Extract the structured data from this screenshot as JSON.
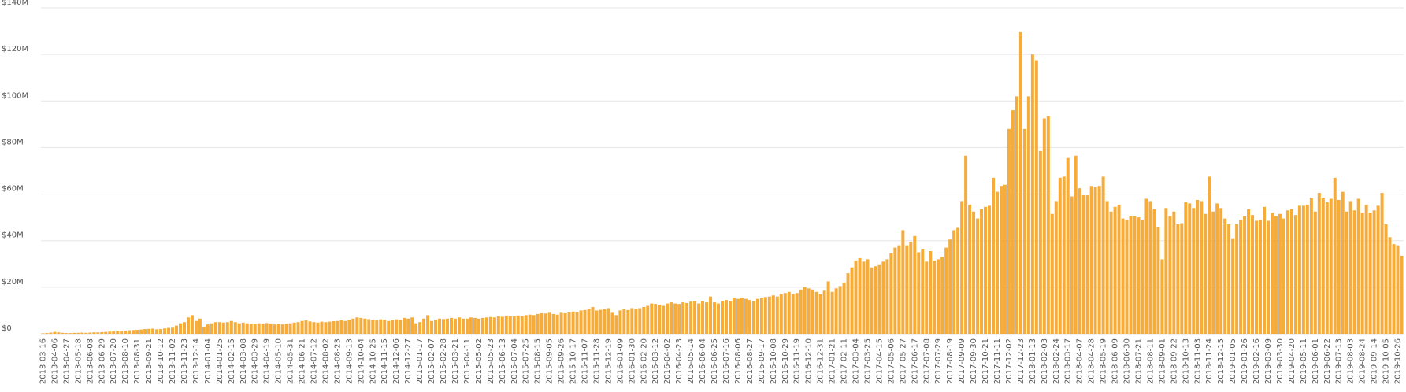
{
  "chart_data": {
    "type": "bar",
    "color": "#f5ac3a",
    "grid": true,
    "ylim": [
      0,
      140
    ],
    "yticks": [
      {
        "value": 0,
        "label": "$0"
      },
      {
        "value": 20,
        "label": "$20M"
      },
      {
        "value": 40,
        "label": "$40M"
      },
      {
        "value": 60,
        "label": "$60M"
      },
      {
        "value": 80,
        "label": "$80M"
      },
      {
        "value": 100,
        "label": "$100M"
      },
      {
        "value": 120,
        "label": "$120M"
      },
      {
        "value": 140,
        "label": "$140M"
      }
    ],
    "categories": [
      "2013-03-16",
      null,
      null,
      "2013-04-06",
      null,
      null,
      "2013-04-27",
      null,
      null,
      "2013-05-18",
      null,
      null,
      "2013-06-08",
      null,
      null,
      "2013-06-29",
      null,
      null,
      "2013-07-20",
      null,
      null,
      "2013-08-10",
      null,
      null,
      "2013-08-31",
      null,
      null,
      "2013-09-21",
      null,
      null,
      "2013-10-12",
      null,
      null,
      "2013-11-02",
      null,
      null,
      "2013-11-23",
      null,
      null,
      "2013-12-14",
      null,
      null,
      "2014-01-04",
      null,
      null,
      "2014-01-25",
      null,
      null,
      "2014-02-15",
      null,
      null,
      "2014-03-08",
      null,
      null,
      "2014-03-29",
      null,
      null,
      "2014-04-19",
      null,
      null,
      "2014-05-10",
      null,
      null,
      "2014-05-31",
      null,
      null,
      "2014-06-21",
      null,
      null,
      "2014-07-12",
      null,
      null,
      "2014-08-02",
      null,
      null,
      "2014-08-23",
      null,
      null,
      "2014-09-13",
      null,
      null,
      "2014-10-04",
      null,
      null,
      "2014-10-25",
      null,
      null,
      "2014-11-15",
      null,
      null,
      "2014-12-06",
      null,
      null,
      "2014-12-27",
      null,
      null,
      "2015-01-17",
      null,
      null,
      "2015-02-07",
      null,
      null,
      "2015-02-28",
      null,
      null,
      "2015-03-21",
      null,
      null,
      "2015-04-11",
      null,
      null,
      "2015-05-02",
      null,
      null,
      "2015-05-23",
      null,
      null,
      "2015-06-13",
      null,
      null,
      "2015-07-04",
      null,
      null,
      "2015-07-25",
      null,
      null,
      "2015-08-15",
      null,
      null,
      "2015-09-05",
      null,
      null,
      "2015-09-26",
      null,
      null,
      "2015-10-17",
      null,
      null,
      "2015-11-07",
      null,
      null,
      "2015-11-28",
      null,
      null,
      "2015-12-19",
      null,
      null,
      "2016-01-09",
      null,
      null,
      "2016-01-30",
      null,
      null,
      "2016-02-20",
      null,
      null,
      "2016-03-12",
      null,
      null,
      "2016-04-02",
      null,
      null,
      "2016-04-23",
      null,
      null,
      "2016-05-14",
      null,
      null,
      "2016-06-04",
      null,
      null,
      "2016-06-25",
      null,
      null,
      "2016-07-16",
      null,
      null,
      "2016-08-06",
      null,
      null,
      "2016-08-27",
      null,
      null,
      "2016-09-17",
      null,
      null,
      "2016-10-08",
      null,
      null,
      "2016-10-29",
      null,
      null,
      "2016-11-19",
      null,
      null,
      "2016-12-10",
      null,
      null,
      "2016-12-31",
      null,
      null,
      "2017-01-21",
      null,
      null,
      "2017-02-11",
      null,
      null,
      "2017-03-04",
      null,
      null,
      "2017-03-25",
      null,
      null,
      "2017-04-15",
      null,
      null,
      "2017-05-06",
      null,
      null,
      "2017-05-27",
      null,
      null,
      "2017-06-17",
      null,
      null,
      "2017-07-08",
      null,
      null,
      "2017-07-29",
      null,
      null,
      "2017-08-19",
      null,
      null,
      "2017-09-09",
      null,
      null,
      "2017-09-30",
      null,
      null,
      "2017-10-21",
      null,
      null,
      "2017-11-11",
      null,
      null,
      "2017-12-02",
      null,
      null,
      "2017-12-23",
      null,
      null,
      "2018-01-13",
      null,
      null,
      "2018-02-03",
      null,
      null,
      "2018-02-24",
      null,
      null,
      "2018-03-17",
      null,
      null,
      "2018-04-07",
      null,
      null,
      "2018-04-28",
      null,
      null,
      "2018-05-19",
      null,
      null,
      "2018-06-09",
      null,
      null,
      "2018-06-30",
      null,
      null,
      "2018-07-21",
      null,
      null,
      "2018-08-11",
      null,
      null,
      "2018-09-01",
      null,
      null,
      "2018-09-22",
      null,
      null,
      "2018-10-13",
      null,
      null,
      "2018-11-03",
      null,
      null,
      "2018-11-24",
      null,
      null,
      "2018-12-15",
      null,
      null,
      "2019-01-05",
      null,
      null,
      "2019-01-26",
      null,
      null,
      "2019-02-16",
      null,
      null,
      "2019-03-09",
      null,
      null,
      "2019-03-30",
      null,
      null,
      "2019-04-20",
      null,
      null,
      "2019-05-11",
      null,
      null,
      "2019-06-01",
      null,
      null,
      "2019-06-22",
      null,
      null,
      "2019-07-13",
      null,
      null,
      "2019-08-03",
      null,
      null,
      "2019-08-24",
      null,
      null,
      "2019-09-14",
      null,
      null,
      "2019-10-05",
      null,
      null,
      "2019-10-26",
      null
    ],
    "values": [
      0.2,
      0.3,
      0.5,
      0.8,
      0.6,
      0.4,
      0.3,
      0.3,
      0.4,
      0.4,
      0.5,
      0.4,
      0.5,
      0.6,
      0.6,
      0.7,
      0.8,
      0.9,
      1.0,
      1.1,
      1.2,
      1.3,
      1.5,
      1.6,
      1.7,
      1.8,
      2.0,
      2.1,
      2.2,
      1.9,
      2.0,
      2.3,
      2.5,
      2.6,
      3.5,
      4.5,
      5.0,
      7.0,
      8.0,
      5.5,
      6.5,
      3.0,
      4.0,
      4.5,
      5.0,
      5.0,
      4.8,
      5.0,
      5.5,
      5.0,
      4.5,
      4.8,
      4.5,
      4.3,
      4.2,
      4.5,
      4.4,
      4.6,
      4.3,
      4.0,
      4.2,
      4.0,
      4.3,
      4.5,
      4.8,
      5.0,
      5.5,
      5.8,
      5.3,
      5.0,
      4.8,
      5.2,
      5.0,
      5.2,
      5.4,
      5.5,
      5.8,
      5.5,
      6.0,
      6.5,
      7.0,
      6.8,
      6.5,
      6.3,
      6.0,
      5.8,
      6.2,
      6.0,
      5.5,
      5.8,
      6.2,
      6.0,
      6.8,
      6.5,
      7.0,
      4.5,
      5.0,
      6.5,
      8.0,
      5.5,
      6.0,
      6.5,
      6.3,
      6.5,
      6.8,
      6.5,
      7.0,
      6.5,
      6.5,
      7.0,
      6.8,
      6.5,
      6.8,
      7.0,
      7.2,
      7.0,
      7.5,
      7.3,
      7.8,
      7.5,
      7.5,
      7.8,
      7.6,
      8.0,
      8.2,
      8.0,
      8.5,
      8.8,
      8.7,
      9.0,
      8.5,
      8.2,
      9.0,
      8.8,
      9.2,
      9.5,
      9.3,
      10.0,
      10.2,
      10.5,
      11.5,
      10.0,
      10.3,
      10.5,
      11.0,
      9.0,
      8.0,
      10.0,
      10.5,
      10.2,
      11.0,
      10.8,
      11.0,
      11.5,
      12.0,
      13.0,
      12.8,
      12.5,
      12.0,
      13.0,
      13.5,
      13.0,
      12.8,
      13.5,
      13.2,
      13.8,
      14.0,
      13.0,
      14.0,
      13.5,
      16.0,
      13.5,
      13.0,
      14.0,
      14.5,
      14.0,
      15.5,
      15.0,
      15.5,
      15.0,
      14.5,
      14.0,
      15.0,
      15.5,
      15.8,
      16.0,
      16.5,
      16.0,
      17.0,
      17.5,
      18.0,
      17.0,
      17.5,
      19.0,
      20.0,
      19.5,
      19.0,
      18.0,
      17.0,
      18.5,
      22.5,
      18.0,
      19.5,
      20.5,
      22.0,
      26.0,
      28.5,
      31.5,
      32.5,
      31.0,
      32.0,
      28.5,
      29.0,
      29.5,
      31.0,
      32.0,
      34.5,
      37.0,
      38.0,
      44.5,
      38.0,
      39.5,
      42.0,
      35.0,
      36.5,
      31.0,
      35.5,
      31.5,
      32.0,
      33.0,
      37.0,
      40.5,
      44.5,
      45.5,
      57.0,
      76.5,
      55.5,
      52.5,
      49.5,
      53.5,
      54.5,
      55.0,
      67.0,
      61.0,
      63.5,
      64.0,
      88.0,
      96.0,
      102.0,
      129.5,
      88.0,
      102.0,
      120.0,
      117.5,
      78.5,
      92.5,
      93.5,
      51.5,
      57.0,
      67.0,
      67.5,
      75.5,
      59.0,
      76.5,
      62.5,
      59.5,
      59.5,
      63.5,
      63.0,
      63.5,
      67.5,
      57.0,
      52.5,
      54.5,
      55.5,
      49.5,
      49.0,
      50.5,
      50.5,
      50.0,
      49.0,
      58.0,
      57.0,
      53.5,
      46.0,
      32.0,
      54.0,
      50.5,
      52.5,
      47.0,
      47.5,
      56.5,
      56.0,
      54.0,
      57.5,
      57.0,
      51.5,
      67.5,
      52.5,
      56.0,
      54.0,
      49.5,
      47.0,
      41.0,
      47.0,
      49.0,
      50.5,
      53.5,
      51.0,
      48.5,
      49.0,
      54.5,
      48.5,
      52.0,
      50.5,
      51.5,
      49.5,
      53.0,
      53.5,
      51.0,
      55.0,
      55.0,
      55.5,
      58.5,
      52.5,
      60.5,
      58.5,
      56.5,
      58.0,
      67.0,
      57.5,
      61.0,
      52.5,
      57.0,
      53.0,
      58.0,
      52.0,
      55.5,
      52.0,
      53.0,
      55.0,
      60.5,
      47.0,
      41.5,
      38.5,
      38.0,
      33.5
    ]
  }
}
